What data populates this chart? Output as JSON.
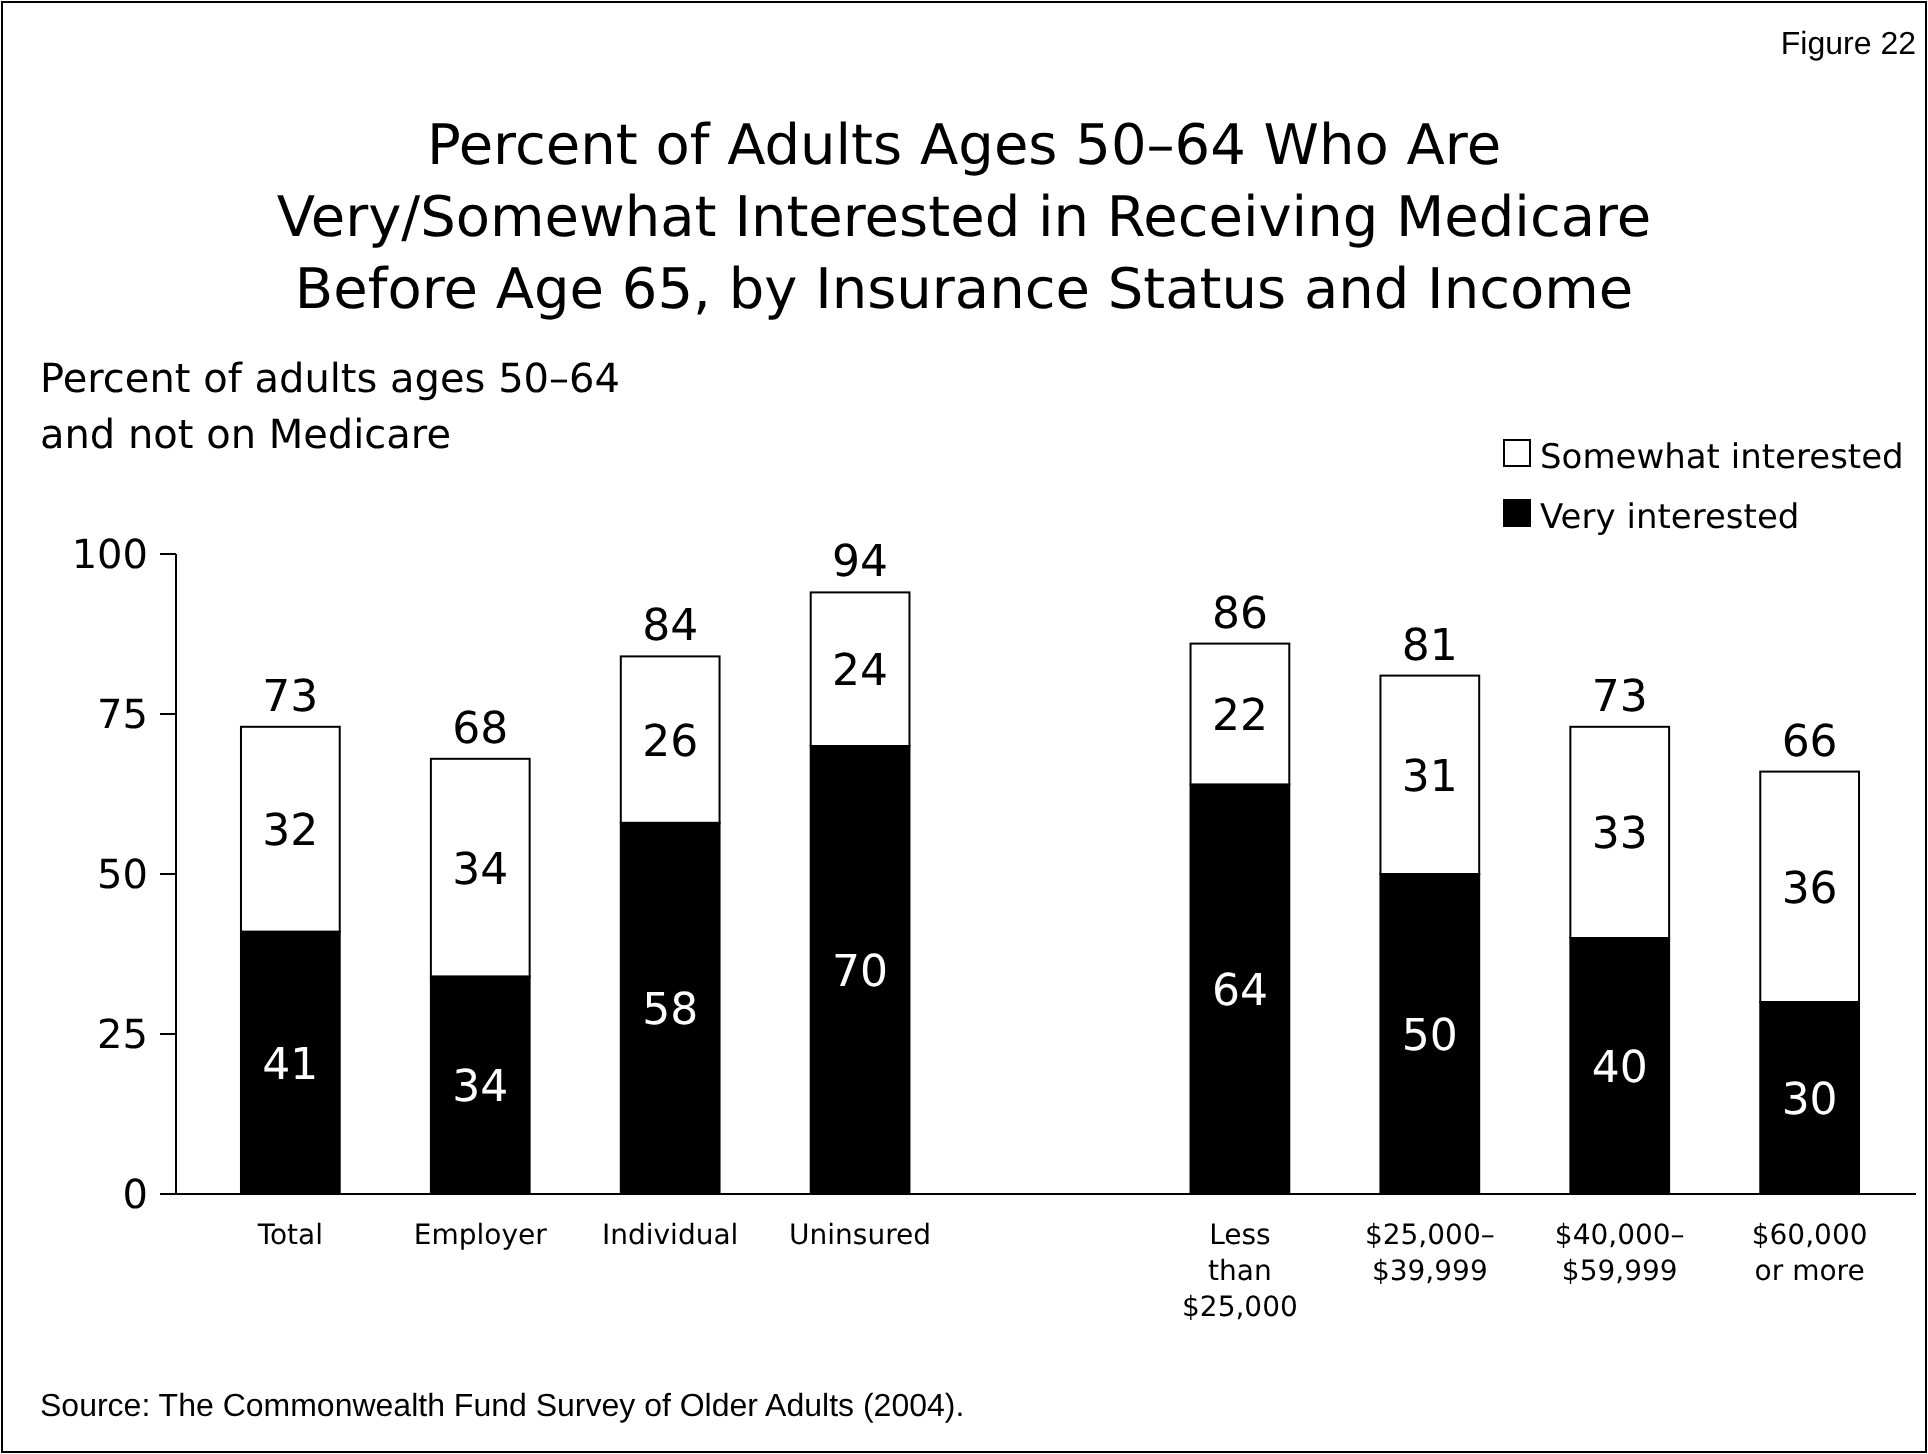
{
  "chart_data": {
    "type": "bar",
    "stacked": true,
    "title": "Percent of Adults Ages 50–64 Who Are\nVery/Somewhat Interested in Receiving Medicare\nBefore Age 65, by Insurance Status and Income",
    "ylabel": "Percent of adults ages 50–64\nand not on Medicare",
    "categories": [
      "Total",
      "Employer",
      "Individual",
      "Uninsured",
      null,
      "Less\nthan\n$25,000",
      "$25,000–\n$39,999",
      "$40,000–\n$59,999",
      "$60,000\nor more"
    ],
    "series": [
      {
        "name": "Very interested",
        "color": "#000000",
        "values": [
          41,
          34,
          58,
          70,
          null,
          64,
          50,
          40,
          30
        ]
      },
      {
        "name": "Somewhat interested",
        "color": "#ffffff",
        "values": [
          32,
          34,
          26,
          24,
          null,
          22,
          31,
          33,
          36
        ]
      }
    ],
    "totals": [
      "73",
      "68",
      "84",
      "94",
      null,
      "86",
      "81",
      "73",
      "66"
    ],
    "data_labels": true,
    "ylim": [
      0,
      100
    ],
    "yticks": [
      0,
      25,
      50,
      75,
      100
    ],
    "grid": false,
    "legend": "top right",
    "annotations": [
      "Figure 22",
      "Source: The Commonwealth Fund Survey of Older Adults (2004)."
    ]
  }
}
